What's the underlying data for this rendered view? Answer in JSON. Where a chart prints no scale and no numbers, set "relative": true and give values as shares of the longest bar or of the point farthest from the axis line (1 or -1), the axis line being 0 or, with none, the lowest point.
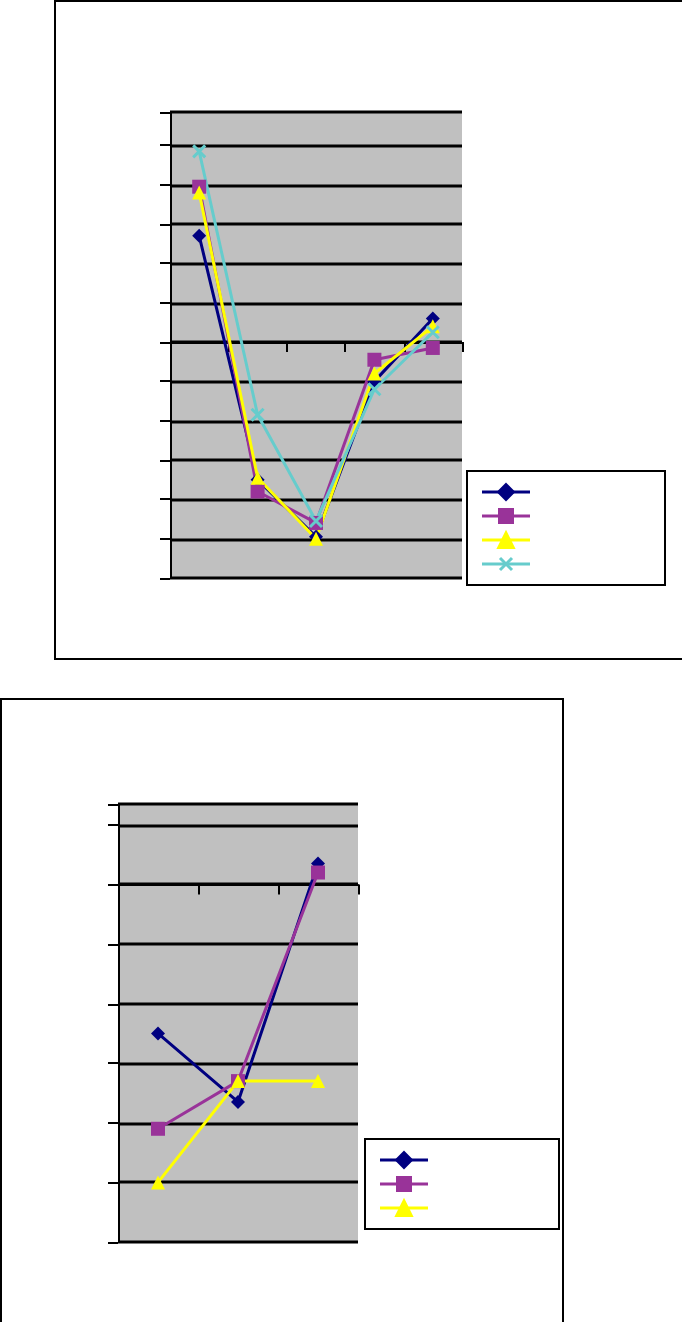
{
  "chart_data": [
    {
      "type": "line",
      "relative": true,
      "categories": [
        null,
        null,
        null,
        null,
        null
      ],
      "grid": "y",
      "series": [
        {
          "color": "#000080",
          "marker": "diamond",
          "values": [
            0.54,
            -0.7,
            -0.99,
            -0.2,
            0.12
          ]
        },
        {
          "color": "#993399",
          "marker": "square",
          "values": [
            0.79,
            -0.76,
            -0.92,
            -0.09,
            -0.03
          ]
        },
        {
          "color": "#ffff00",
          "marker": "triangle",
          "values": [
            0.76,
            -0.69,
            -1,
            -0.16,
            0.08
          ]
        },
        {
          "color": "#66cccc",
          "marker": "cross",
          "values": [
            0.97,
            -0.37,
            -0.91,
            -0.24,
            0.05
          ]
        }
      ]
    },
    {
      "type": "line",
      "relative": true,
      "categories": [
        null,
        null,
        null
      ],
      "grid": "y",
      "series": [
        {
          "color": "#000080",
          "marker": "diamond",
          "values": [
            -0.5,
            -0.73,
            0.07
          ]
        },
        {
          "color": "#993399",
          "marker": "square",
          "values": [
            -0.82,
            -0.66,
            0.04
          ]
        },
        {
          "color": "#ffff00",
          "marker": "triangle",
          "values": [
            -1,
            -0.66,
            -0.66
          ]
        }
      ]
    }
  ]
}
